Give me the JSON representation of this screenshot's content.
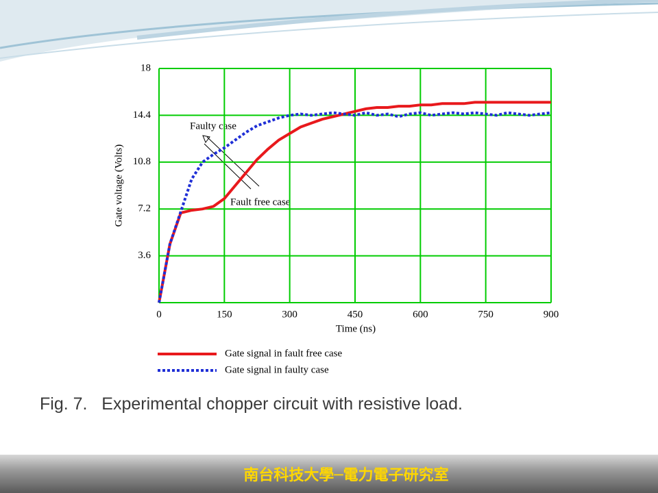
{
  "chart_data": {
    "type": "line",
    "x_label": "Time (ns)",
    "y_label": "Gate voltage (Volts)",
    "annotations": [
      "Faulty case",
      "Fault free case"
    ],
    "x": [
      0,
      25,
      50,
      75,
      100,
      125,
      150,
      175,
      200,
      225,
      250,
      275,
      300,
      325,
      350,
      375,
      400,
      425,
      450,
      475,
      500,
      525,
      550,
      575,
      600,
      625,
      650,
      675,
      700,
      725,
      750,
      775,
      800,
      825,
      850,
      875,
      900
    ],
    "series": [
      {
        "name": "Gate signal in fault free case",
        "color": "#e8191c",
        "dash": false,
        "values": [
          0,
          4.5,
          6.9,
          7.1,
          7.2,
          7.4,
          8.0,
          9.0,
          10.0,
          11.0,
          11.8,
          12.5,
          13.0,
          13.5,
          13.8,
          14.1,
          14.3,
          14.5,
          14.7,
          14.9,
          15.0,
          15.0,
          15.1,
          15.1,
          15.2,
          15.2,
          15.3,
          15.3,
          15.3,
          15.4,
          15.4,
          15.4,
          15.4,
          15.4,
          15.4,
          15.4,
          15.4
        ]
      },
      {
        "name": "Gate signal in faulty case",
        "color": "#1f2fd6",
        "dash": true,
        "values": [
          0,
          4.5,
          7.0,
          9.5,
          10.8,
          11.4,
          11.9,
          12.5,
          13.1,
          13.6,
          13.9,
          14.2,
          14.4,
          14.5,
          14.4,
          14.5,
          14.6,
          14.5,
          14.4,
          14.6,
          14.4,
          14.5,
          14.3,
          14.5,
          14.6,
          14.4,
          14.5,
          14.6,
          14.5,
          14.6,
          14.5,
          14.4,
          14.6,
          14.5,
          14.4,
          14.5,
          14.6
        ]
      }
    ],
    "xlim": [
      0,
      900
    ],
    "xticks": [
      0,
      150,
      300,
      450,
      600,
      750,
      900
    ],
    "ylim": [
      0,
      18
    ],
    "yticks": [
      3.6,
      7.2,
      10.8,
      14.4,
      18
    ],
    "grid": true,
    "grid_color": "#00cc00",
    "legend": "bottom"
  },
  "caption": "Fig. 7.   Experimental chopper circuit with resistive load.",
  "footer": "南台科技大學─電力電子研究室"
}
